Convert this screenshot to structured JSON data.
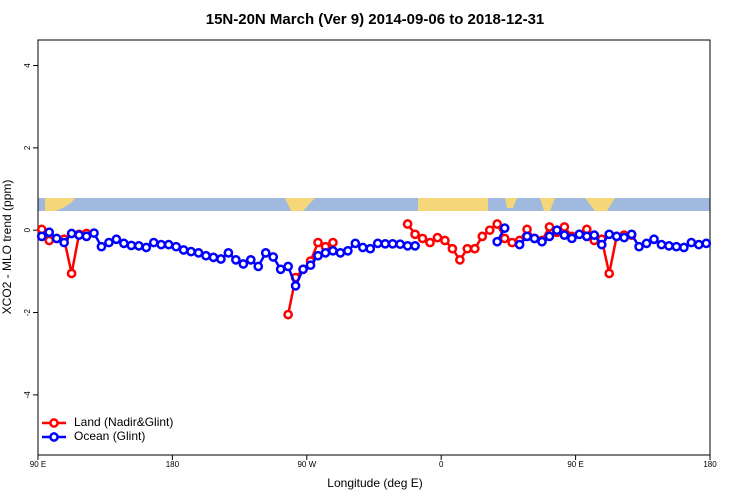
{
  "chart_data": {
    "type": "line",
    "title": "15N-20N March (Ver 9)   2014-09-06 to 2018-12-31",
    "x_label": "Longitude (deg E)",
    "y_label": "XCO2 - MLO trend (ppm)",
    "xlim": [
      90,
      540
    ],
    "ylim": [
      -5.46,
      4.62
    ],
    "xticks": [
      {
        "value": 90,
        "label": "90 E"
      },
      180,
      {
        "value": 270,
        "label": "90 W"
      },
      {
        "value": 360,
        "label": "0"
      },
      {
        "value": 450,
        "label": "90 E"
      },
      {
        "value": 540,
        "label": "180"
      }
    ],
    "yticks": [
      -4,
      -2,
      0,
      2,
      4
    ],
    "legend": "bottom-left",
    "x": [
      92.5,
      97.5,
      102.5,
      107.5,
      112.5,
      117.5,
      122.5,
      127.5,
      132.5,
      137.5,
      142.5,
      147.5,
      152.5,
      157.5,
      162.5,
      167.5,
      172.5,
      177.5,
      182.5,
      187.5,
      192.5,
      197.5,
      202.5,
      207.5,
      212.5,
      217.5,
      222.5,
      227.5,
      232.5,
      237.5,
      242.5,
      247.5,
      252.5,
      257.5,
      262.5,
      267.5,
      272.5,
      277.5,
      282.5,
      287.5,
      292.5,
      297.5,
      302.5,
      307.5,
      312.5,
      317.5,
      322.5,
      327.5,
      332.5,
      337.5,
      342.5,
      347.5,
      352.5,
      357.5,
      362.5,
      367.5,
      372.5,
      377.5,
      382.5,
      387.5,
      392.5,
      397.5,
      402.5,
      407.5,
      412.5,
      417.5,
      422.5,
      427.5,
      432.5,
      437.5,
      442.5,
      447.5,
      452.5,
      457.5,
      462.5,
      467.5,
      472.5,
      477.5,
      482.5,
      487.5,
      492.5,
      497.5,
      502.5,
      507.5,
      512.5,
      517.5,
      522.5,
      527.5,
      532.5,
      537.5
    ],
    "series": [
      {
        "name": "Land (Nadir&Glint)",
        "color": "#ff0000",
        "values": [
          0.02,
          -0.25,
          -0.2,
          -0.22,
          -1.05,
          -0.1,
          -0.08,
          null,
          null,
          null,
          null,
          null,
          null,
          null,
          null,
          null,
          null,
          null,
          null,
          null,
          null,
          null,
          null,
          null,
          null,
          null,
          null,
          null,
          null,
          null,
          null,
          null,
          null,
          -2.05,
          -1.15,
          -0.95,
          -0.75,
          -0.3,
          -0.4,
          -0.3,
          null,
          null,
          null,
          null,
          null,
          null,
          null,
          null,
          null,
          0.15,
          -0.1,
          -0.2,
          -0.3,
          -0.18,
          -0.25,
          -0.45,
          -0.72,
          -0.45,
          -0.45,
          -0.15,
          0.0,
          0.15,
          -0.2,
          -0.3,
          -0.25,
          0.02,
          -0.2,
          -0.25,
          0.08,
          -0.05,
          0.08,
          -0.15,
          -0.1,
          0.02,
          -0.25,
          -0.22,
          -1.05,
          -0.15,
          -0.12,
          -0.12,
          null,
          null,
          null,
          null,
          null,
          null,
          null,
          null,
          null,
          null
        ]
      },
      {
        "name": "Ocean (Glint)",
        "color": "#0000ff",
        "values": [
          -0.15,
          -0.05,
          -0.2,
          -0.3,
          -0.08,
          -0.12,
          -0.15,
          -0.07,
          -0.4,
          -0.3,
          -0.22,
          -0.32,
          -0.37,
          -0.38,
          -0.42,
          -0.3,
          -0.35,
          -0.35,
          -0.4,
          -0.48,
          -0.52,
          -0.55,
          -0.62,
          -0.66,
          -0.7,
          -0.55,
          -0.72,
          -0.82,
          -0.72,
          -0.88,
          -0.55,
          -0.65,
          -0.95,
          -0.88,
          -1.35,
          -0.95,
          -0.85,
          -0.62,
          -0.55,
          -0.5,
          -0.55,
          -0.5,
          -0.32,
          -0.42,
          -0.45,
          -0.32,
          -0.33,
          -0.33,
          -0.34,
          -0.38,
          -0.38,
          null,
          null,
          null,
          null,
          null,
          null,
          null,
          null,
          null,
          null,
          -0.28,
          0.05,
          null,
          -0.35,
          -0.15,
          -0.2,
          -0.28,
          -0.15,
          0.0,
          -0.12,
          -0.2,
          -0.1,
          -0.15,
          -0.12,
          -0.35,
          -0.1,
          -0.15,
          -0.18,
          -0.1,
          -0.4,
          -0.32,
          -0.22,
          -0.35,
          -0.38,
          -0.4,
          -0.42,
          -0.3,
          -0.35,
          -0.32
        ]
      }
    ]
  }
}
